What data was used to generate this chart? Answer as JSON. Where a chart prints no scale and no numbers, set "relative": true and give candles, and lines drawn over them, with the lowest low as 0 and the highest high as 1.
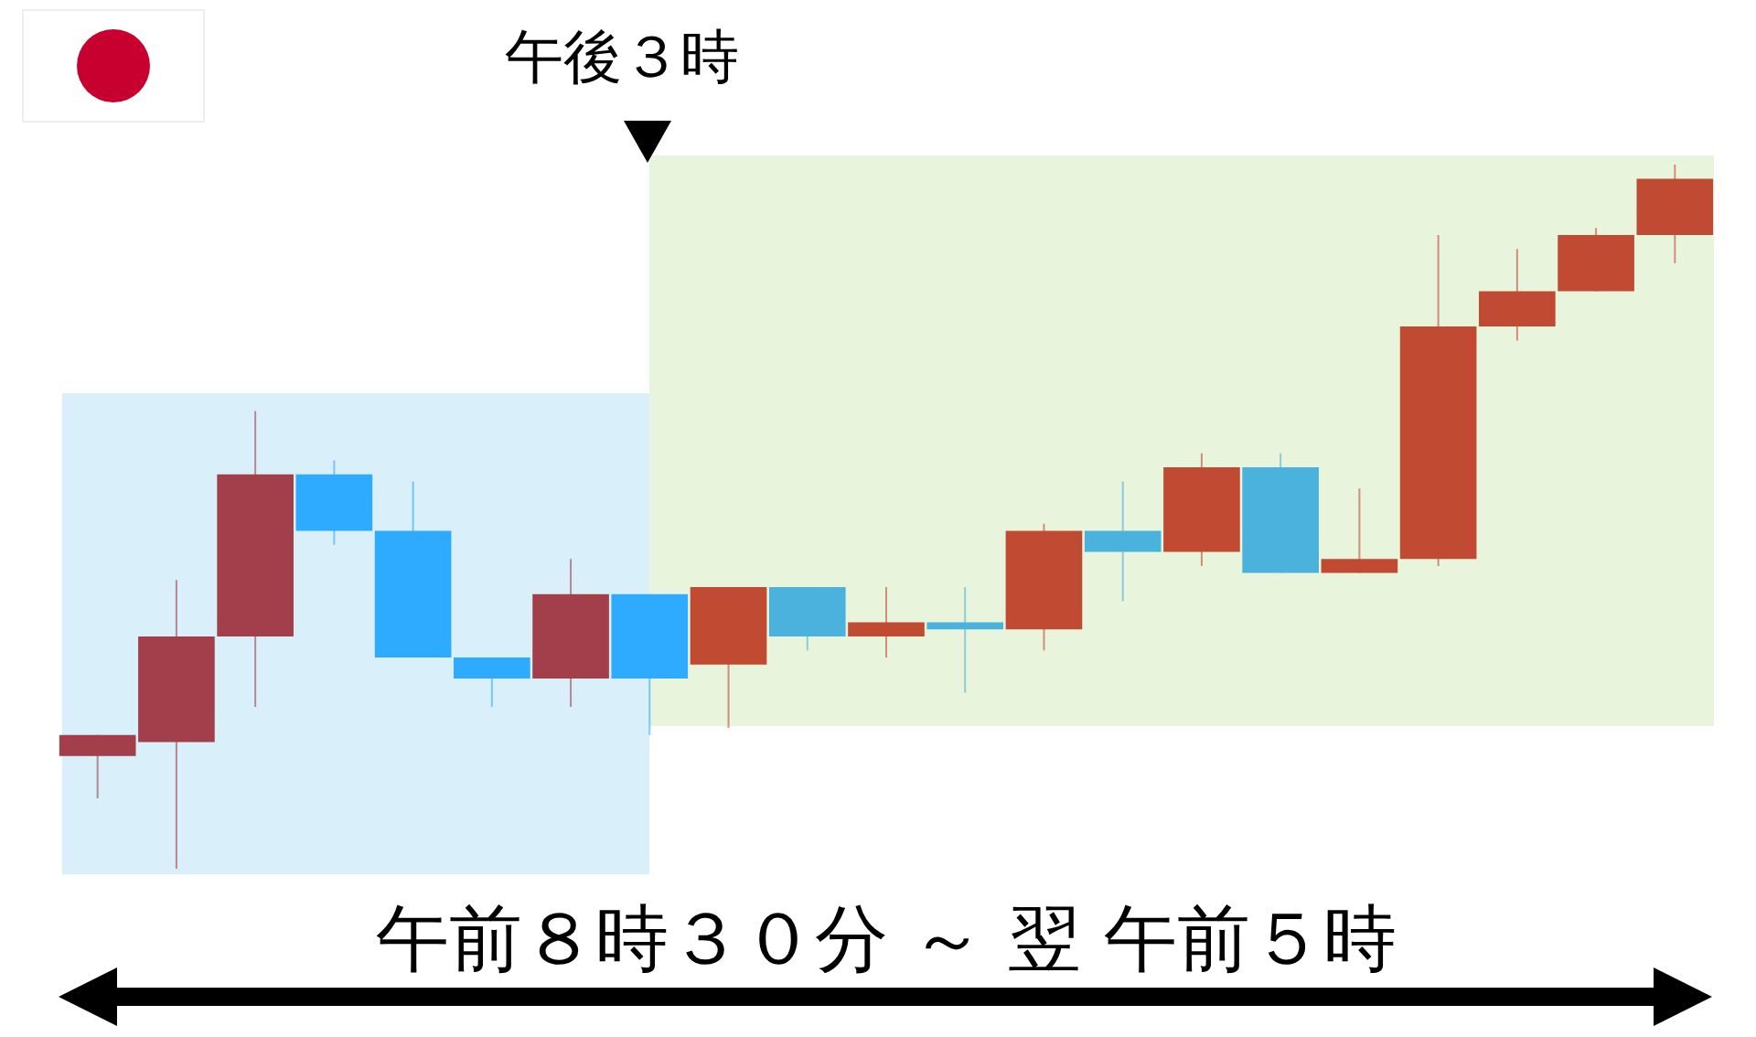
{
  "chart_data": {
    "type": "candlestick",
    "relative": true,
    "categories": [
      null,
      null,
      null,
      null,
      null,
      null,
      null,
      null,
      null,
      null,
      null,
      null,
      null,
      null,
      null,
      null,
      null,
      null,
      null,
      null,
      null
    ],
    "ohlc": [
      [
        0.16,
        0.19,
        0.1,
        0.19
      ],
      [
        0.18,
        0.41,
        0,
        0.33
      ],
      [
        0.33,
        0.65,
        0.23,
        0.56
      ],
      [
        0.56,
        0.58,
        0.46,
        0.48
      ],
      [
        0.48,
        0.55,
        0.3,
        0.3
      ],
      [
        0.3,
        0.3,
        0.23,
        0.27
      ],
      [
        0.27,
        0.44,
        0.23,
        0.39
      ],
      [
        0.39,
        0.39,
        0.19,
        0.27
      ],
      [
        0.29,
        0.4,
        0.2,
        0.4
      ],
      [
        0.4,
        0.4,
        0.31,
        0.33
      ],
      [
        0.33,
        0.4,
        0.3,
        0.35
      ],
      [
        0.35,
        0.4,
        0.25,
        0.34
      ],
      [
        0.34,
        0.49,
        0.31,
        0.48
      ],
      [
        0.48,
        0.55,
        0.38,
        0.45
      ],
      [
        0.45,
        0.59,
        0.43,
        0.57
      ],
      [
        0.57,
        0.59,
        0.42,
        0.42
      ],
      [
        0.42,
        0.54,
        0.42,
        0.44
      ],
      [
        0.44,
        0.9,
        0.43,
        0.77
      ],
      [
        0.77,
        0.88,
        0.75,
        0.82
      ],
      [
        0.82,
        0.91,
        0.82,
        0.9
      ],
      [
        0.9,
        1,
        0.86,
        0.98
      ]
    ],
    "colors": [
      "#a23f4a",
      "#a23f4a",
      "#a23f4a",
      "#2eaaff",
      "#2eaaff",
      "#2eaaff",
      "#a23f4a",
      "#2eaaff",
      "#c04a32",
      "#4ab2dc",
      "#c04a32",
      "#4ab2dc",
      "#c04a32",
      "#4ab2dc",
      "#c04a32",
      "#4ab2dc",
      "#c04a32",
      "#c04a32",
      "#c04a32",
      "#c04a32",
      "#c04a32"
    ],
    "annotations": [
      "午後３時",
      "午前８時３０分 ～ 翌 午前５時"
    ]
  }
}
